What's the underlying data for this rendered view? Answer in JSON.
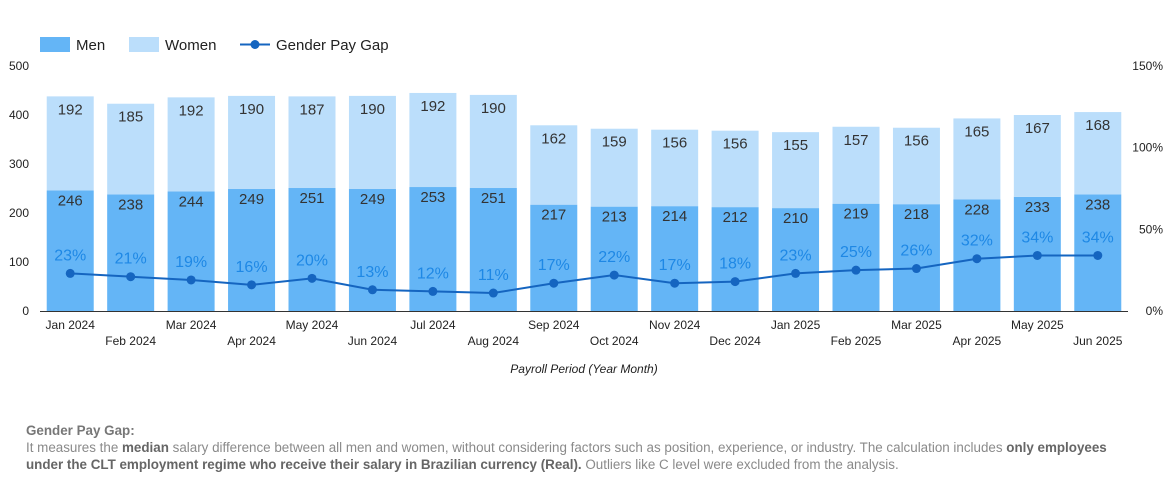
{
  "legend": {
    "men": "Men",
    "women": "Women",
    "gap": "Gender Pay Gap"
  },
  "colors": {
    "men": "#64b5f6",
    "women": "#bbdefb",
    "gap": "#1565c0",
    "gap_label": "#1e88e5"
  },
  "chart_data": {
    "type": "bar",
    "stacked": true,
    "categories": [
      "Jan 2024",
      "Feb 2024",
      "Mar 2024",
      "Apr 2024",
      "May 2024",
      "Jun 2024",
      "Jul 2024",
      "Aug 2024",
      "Sep 2024",
      "Oct 2024",
      "Nov 2024",
      "Dec 2024",
      "Jan 2025",
      "Feb 2025",
      "Mar 2025",
      "Apr 2025",
      "May 2025",
      "Jun 2025"
    ],
    "series": [
      {
        "name": "Men",
        "type": "bar",
        "values": [
          246,
          238,
          244,
          249,
          251,
          249,
          253,
          251,
          217,
          213,
          214,
          212,
          210,
          219,
          218,
          228,
          233,
          238
        ]
      },
      {
        "name": "Women",
        "type": "bar",
        "values": [
          192,
          185,
          192,
          190,
          187,
          190,
          192,
          190,
          162,
          159,
          156,
          156,
          155,
          157,
          156,
          165,
          167,
          168
        ]
      },
      {
        "name": "Gender Pay Gap",
        "type": "line",
        "axis": "right",
        "values": [
          23,
          21,
          19,
          16,
          20,
          13,
          12,
          11,
          17,
          22,
          17,
          18,
          23,
          25,
          26,
          32,
          34,
          34
        ],
        "labels": [
          "23%",
          "21%",
          "19%",
          "16%",
          "20%",
          "13%",
          "12%",
          "11%",
          "17%",
          "22%",
          "17%",
          "18%",
          "23%",
          "25%",
          "26%",
          "32%",
          "34%",
          "34%"
        ]
      }
    ],
    "xlabel": "Payroll Period (Year Month)",
    "ylim": [
      0,
      500
    ],
    "yticks": [
      "0",
      "100",
      "200",
      "300",
      "400",
      "500"
    ],
    "y2lim": [
      0,
      150
    ],
    "y2ticks": [
      "0%",
      "50%",
      "100%",
      "150%"
    ],
    "legend_position": "top-left",
    "grid": false
  },
  "note": {
    "title": "Gender Pay Gap:",
    "text1": "It measures the ",
    "bold1": "median",
    "text2": " salary difference between all men and women, without considering factors such as position, experience, or industry. The calculation includes ",
    "bold2": "only employees under the CLT employment regime who receive their salary in Brazilian currency (Real).",
    "text3": " Outliers like C level were excluded from the analysis."
  }
}
